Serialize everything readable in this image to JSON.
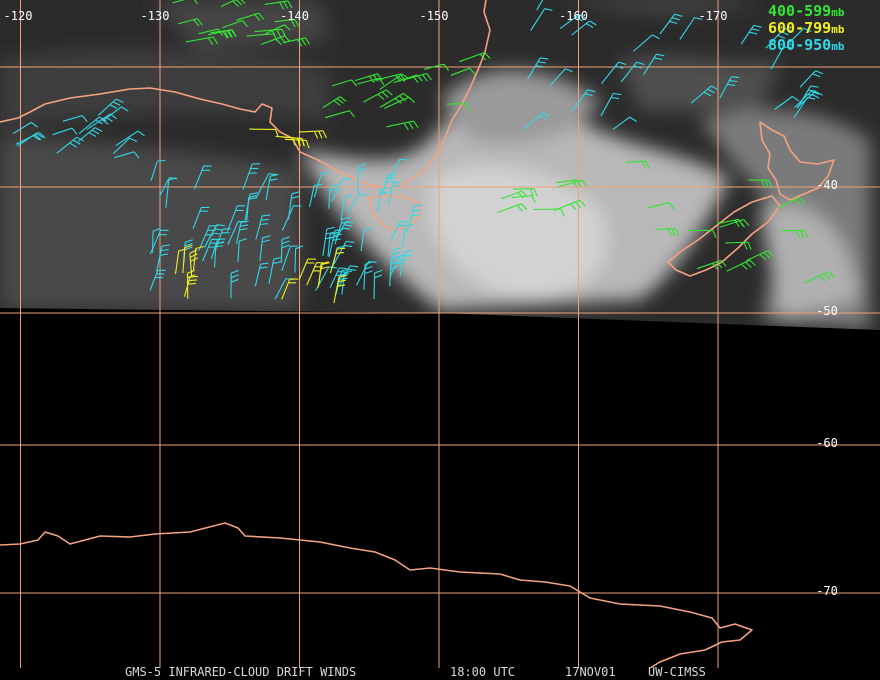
{
  "map": {
    "longitudes": [
      -120,
      -130,
      -140,
      -150,
      -160,
      -170
    ],
    "latitudes": [
      -40,
      -50,
      -60,
      -70
    ],
    "legend": [
      {
        "range": "400-599",
        "unit": "mb",
        "color": "#33e633"
      },
      {
        "range": "600-799",
        "unit": "mb",
        "color": "#f0f020"
      },
      {
        "range": "800-950",
        "unit": "mb",
        "color": "#30d8e8"
      }
    ],
    "footer": {
      "product": "GMS-5 INFRARED-CLOUD DRIFT WINDS",
      "time": "18:00 UTC",
      "date": "17NOV01",
      "source": "UW-CIMSS"
    }
  }
}
